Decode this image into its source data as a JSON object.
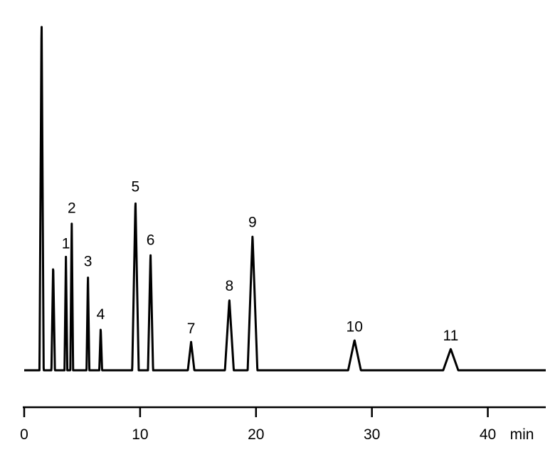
{
  "chart_data": {
    "type": "line",
    "xlim": [
      0,
      45
    ],
    "x_unit": "min",
    "x_ticks": [
      {
        "value": 0,
        "label": "0"
      },
      {
        "value": 10,
        "label": "10"
      },
      {
        "value": 20,
        "label": "20"
      },
      {
        "value": 30,
        "label": "30"
      },
      {
        "value": 40,
        "label": "40"
      }
    ],
    "baseline": 0,
    "solvent_peak": {
      "rt": 1.5,
      "height": 100,
      "width": 0.18
    },
    "peaks": [
      {
        "label": "",
        "rt": 2.5,
        "height": 30,
        "width": 0.15
      },
      {
        "label": "1",
        "rt": 3.6,
        "height": 32,
        "width": 0.12
      },
      {
        "label": "2",
        "rt": 4.1,
        "height": 42,
        "width": 0.12
      },
      {
        "label": "3",
        "rt": 5.5,
        "height": 27,
        "width": 0.12
      },
      {
        "label": "4",
        "rt": 6.6,
        "height": 12,
        "width": 0.12
      },
      {
        "label": "5",
        "rt": 9.6,
        "height": 48,
        "width": 0.28
      },
      {
        "label": "6",
        "rt": 10.9,
        "height": 33,
        "width": 0.22
      },
      {
        "label": "7",
        "rt": 14.4,
        "height": 8,
        "width": 0.28
      },
      {
        "label": "8",
        "rt": 17.7,
        "height": 20,
        "width": 0.38
      },
      {
        "label": "9",
        "rt": 19.7,
        "height": 38,
        "width": 0.42
      },
      {
        "label": "10",
        "rt": 28.5,
        "height": 8.5,
        "width": 0.55
      },
      {
        "label": "11",
        "rt": 36.8,
        "height": 6,
        "width": 0.65
      }
    ]
  }
}
